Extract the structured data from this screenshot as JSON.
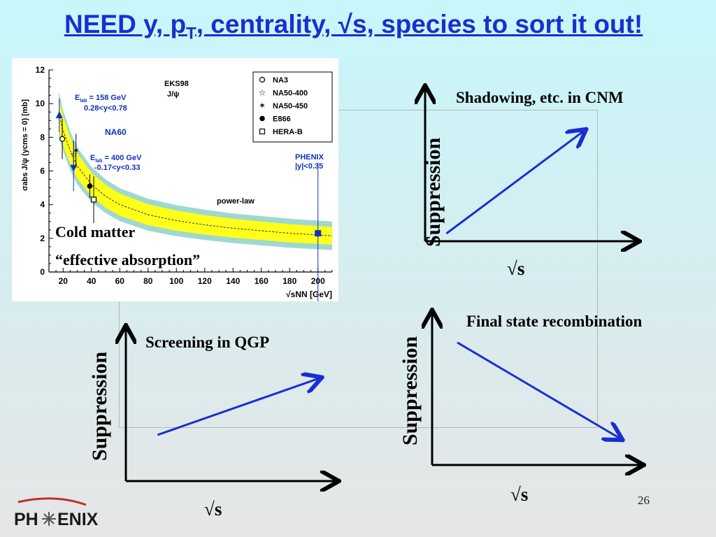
{
  "slide": {
    "title_pre": "NEED y, p",
    "title_sub": "T",
    "title_post": ", centrality, √s, species to sort it out!",
    "page_number": "26",
    "logo_text": "PH✳ENIX"
  },
  "chart_data": [
    {
      "type": "scatter",
      "ylabel": "σabs J/ψ (ycms = 0) [mb]",
      "xlabel": "√sNN [GeV]",
      "xlim": [
        10,
        210
      ],
      "ylim": [
        0,
        12
      ],
      "x_ticks": [
        "20",
        "40",
        "60",
        "80",
        "100",
        "120",
        "140",
        "160",
        "180",
        "200"
      ],
      "y_ticks": [
        "0",
        "2",
        "4",
        "6",
        "8",
        "10",
        "12"
      ],
      "x_tick_values": [
        20,
        40,
        60,
        80,
        100,
        120,
        140,
        160,
        180,
        200
      ],
      "y_tick_values": [
        0,
        2,
        4,
        6,
        8,
        10,
        12
      ],
      "legend": [
        {
          "label": "NA3",
          "marker": "open-circle"
        },
        {
          "label": "NA50-400",
          "marker": "open-star"
        },
        {
          "label": "NA50-450",
          "marker": "star"
        },
        {
          "label": "E866",
          "marker": "filled-circle"
        },
        {
          "label": "HERA-B",
          "marker": "open-square"
        }
      ],
      "legend_header": [
        "EKS98",
        "J/ψ"
      ],
      "series": [
        {
          "name": "NA3",
          "marker": "open-circle",
          "x": [
            19.4
          ],
          "y": [
            7.9
          ],
          "err": [
            1.2
          ]
        },
        {
          "name": "NA50-400",
          "marker": "open-star",
          "x": [
            27.4
          ],
          "y": [
            7.0
          ],
          "err": [
            0.8
          ]
        },
        {
          "name": "NA50-450",
          "marker": "star",
          "x": [
            29.1
          ],
          "y": [
            7.2
          ],
          "err": [
            1.0
          ]
        },
        {
          "name": "E866",
          "marker": "filled-circle",
          "x": [
            38.8
          ],
          "y": [
            5.1
          ],
          "err": [
            0.7
          ]
        },
        {
          "name": "HERA-B",
          "marker": "open-square",
          "x": [
            41.6
          ],
          "y": [
            4.3
          ],
          "err": [
            1.4
          ]
        },
        {
          "name": "Elab = 158 GeV",
          "marker": "triangle-up",
          "color": "#1030c0",
          "x": [
            17.3
          ],
          "y": [
            9.3
          ],
          "err": [
            1.0
          ]
        },
        {
          "name": "Elab = 400 GeV",
          "marker": "triangle-down",
          "color": "#1030c0",
          "x": [
            27.4
          ],
          "y": [
            6.2
          ],
          "err": [
            1.4
          ]
        },
        {
          "name": "PHENIX",
          "marker": "square",
          "color": "#1030c0",
          "x": [
            200
          ],
          "y": [
            2.3
          ],
          "err": [
            4.2
          ]
        }
      ],
      "curve": {
        "name": "power-law",
        "x": [
          17,
          20,
          25,
          30,
          40,
          50,
          60,
          80,
          100,
          120,
          140,
          160,
          180,
          200,
          210
        ],
        "y": [
          9.4,
          8.4,
          7.2,
          6.3,
          5.2,
          4.5,
          4.0,
          3.4,
          3.05,
          2.8,
          2.6,
          2.45,
          2.3,
          2.2,
          2.15
        ],
        "band_inner": [
          0.9,
          0.85,
          0.8,
          0.75,
          0.7,
          0.68,
          0.66,
          0.62,
          0.6,
          0.58,
          0.56,
          0.55,
          0.54,
          0.53,
          0.53
        ],
        "band_outer": [
          1.3,
          1.2,
          1.15,
          1.1,
          1.05,
          1.0,
          0.98,
          0.95,
          0.92,
          0.9,
          0.88,
          0.87,
          0.86,
          0.85,
          0.85
        ]
      },
      "annotations": [
        {
          "lines": [
            "E",
            "lab",
            "= 158 GeV"
          ],
          "text2": "0.28<y<0.78"
        },
        {
          "text": "NA60"
        },
        {
          "lines": [
            "E",
            "lab",
            "= 400 GeV"
          ],
          "text2": "-0.17<y<0.33"
        },
        {
          "text": "PHENIX",
          "text2": "|y|<0.35"
        },
        {
          "text": "power-law"
        }
      ],
      "overlay_text": [
        "Cold matter",
        "“effective absorption”"
      ]
    },
    {
      "type": "line",
      "title": "Shadowing, etc. in CNM",
      "xlabel": "√s",
      "ylabel": "Suppression",
      "trend": "increasing",
      "x": [
        0.1,
        0.75
      ],
      "y": [
        0.05,
        0.72
      ]
    },
    {
      "type": "line",
      "title": "Screening in QGP",
      "xlabel": "√s",
      "ylabel": "Suppression",
      "trend": "increasing",
      "x": [
        0.15,
        0.92
      ],
      "y": [
        0.3,
        0.67
      ]
    },
    {
      "type": "line",
      "title": "Final state recombination",
      "xlabel": "√s",
      "ylabel": "Suppression",
      "trend": "decreasing",
      "x": [
        0.12,
        0.9
      ],
      "y": [
        0.8,
        0.17
      ]
    }
  ]
}
